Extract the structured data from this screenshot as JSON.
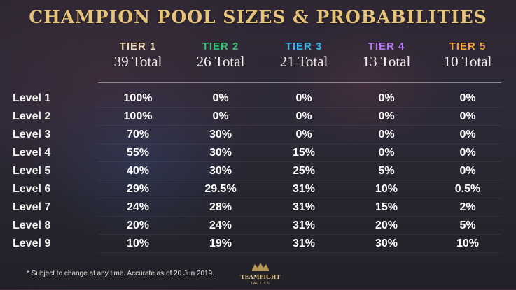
{
  "title": "CHAMPION POOL SIZES & PROBABILITIES",
  "colors": {
    "title": "#e6c47a",
    "tier1": "#ecdcb0",
    "tier2": "#31c272",
    "tier3": "#38b6ea",
    "tier4": "#b478ec",
    "tier5": "#f0a234"
  },
  "tiers": [
    {
      "name": "TIER 1",
      "total": "39 Total"
    },
    {
      "name": "TIER 2",
      "total": "26 Total"
    },
    {
      "name": "TIER 3",
      "total": "21 Total"
    },
    {
      "name": "TIER 4",
      "total": "13 Total"
    },
    {
      "name": "TIER 5",
      "total": "10 Total"
    }
  ],
  "rows": [
    {
      "label": "Level 1",
      "values": [
        "100%",
        "0%",
        "0%",
        "0%",
        "0%"
      ]
    },
    {
      "label": "Level 2",
      "values": [
        "100%",
        "0%",
        "0%",
        "0%",
        "0%"
      ]
    },
    {
      "label": "Level 3",
      "values": [
        "70%",
        "30%",
        "0%",
        "0%",
        "0%"
      ]
    },
    {
      "label": "Level 4",
      "values": [
        "55%",
        "30%",
        "15%",
        "0%",
        "0%"
      ]
    },
    {
      "label": "Level 5",
      "values": [
        "40%",
        "30%",
        "25%",
        "5%",
        "0%"
      ]
    },
    {
      "label": "Level 6",
      "values": [
        "29%",
        "29.5%",
        "31%",
        "10%",
        "0.5%"
      ]
    },
    {
      "label": "Level 7",
      "values": [
        "24%",
        "28%",
        "31%",
        "15%",
        "2%"
      ]
    },
    {
      "label": "Level 8",
      "values": [
        "20%",
        "24%",
        "31%",
        "20%",
        "5%"
      ]
    },
    {
      "label": "Level 9",
      "values": [
        "10%",
        "19%",
        "31%",
        "30%",
        "10%"
      ]
    }
  ],
  "footnote": "* Subject to change at any time. Accurate as of 20 Jun 2019.",
  "logo": {
    "line1": "TEAMFIGHT",
    "line2": "TACTICS",
    "icon": "crown-icon"
  }
}
